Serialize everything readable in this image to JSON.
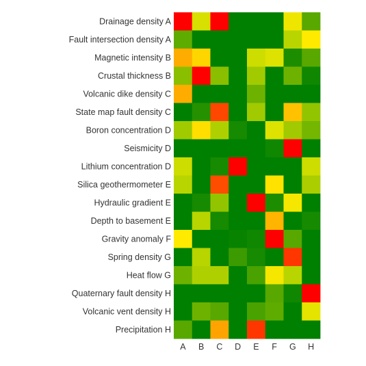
{
  "chart_data": {
    "type": "heatmap",
    "title": "",
    "xlabel": "",
    "ylabel": "",
    "columns": [
      "A",
      "B",
      "C",
      "D",
      "E",
      "F",
      "G",
      "H"
    ],
    "rows": [
      "Drainage density A",
      "Fault intersection density A",
      "Magnetic intensity B",
      "Crustal thickness B",
      "Volcanic dike density C",
      "State map fault density C",
      "Boron concentration D",
      "Seismicity D",
      "Lithium concentration D",
      "Silica geothermometer E",
      "Hydraulic gradient E",
      "Depth to basement E",
      "Gravity anomaly F",
      "Spring density G",
      "Heat flow G",
      "Quaternary fault density H",
      "Volcanic vent density H",
      "Precipitation H"
    ],
    "color_scale": [
      "#008000",
      "#7ab800",
      "#c8dc00",
      "#ffea00",
      "#ffa500",
      "#ff4500",
      "#ff0000"
    ],
    "value_range": [
      0,
      1
    ],
    "values": [
      [
        1.0,
        0.38,
        1.0,
        0.0,
        0.0,
        0.0,
        0.45,
        0.12
      ],
      [
        0.13,
        0.0,
        0.0,
        0.0,
        0.0,
        0.0,
        0.3,
        0.5
      ],
      [
        0.65,
        0.55,
        0.0,
        0.0,
        0.35,
        0.4,
        0.04,
        0.12
      ],
      [
        0.2,
        1.0,
        0.2,
        0.0,
        0.25,
        0.0,
        0.15,
        0.02
      ],
      [
        0.65,
        0.0,
        0.0,
        0.0,
        0.15,
        0.0,
        0.0,
        0.0
      ],
      [
        0.0,
        0.05,
        0.83,
        0.0,
        0.25,
        0.0,
        0.6,
        0.22
      ],
      [
        0.25,
        0.53,
        0.28,
        0.03,
        0.0,
        0.4,
        0.25,
        0.16
      ],
      [
        0.0,
        0.0,
        0.0,
        0.0,
        0.0,
        0.02,
        1.0,
        0.0
      ],
      [
        0.35,
        0.0,
        0.03,
        1.0,
        0.0,
        0.0,
        0.0,
        0.35
      ],
      [
        0.3,
        0.0,
        0.82,
        0.0,
        0.0,
        0.52,
        0.0,
        0.27
      ],
      [
        0.0,
        0.03,
        0.22,
        0.0,
        1.0,
        0.04,
        0.47,
        0.0
      ],
      [
        0.0,
        0.3,
        0.03,
        0.0,
        0.0,
        0.63,
        0.0,
        0.03
      ],
      [
        0.5,
        0.0,
        0.0,
        0.01,
        0.02,
        1.0,
        0.12,
        0.0
      ],
      [
        0.0,
        0.3,
        0.0,
        0.08,
        0.03,
        0.0,
        0.87,
        0.0
      ],
      [
        0.15,
        0.28,
        0.28,
        0.0,
        0.1,
        0.47,
        0.3,
        0.0
      ],
      [
        0.0,
        0.0,
        0.0,
        0.0,
        0.0,
        0.12,
        0.02,
        1.0
      ],
      [
        0.0,
        0.15,
        0.12,
        0.0,
        0.1,
        0.13,
        0.0,
        0.42
      ],
      [
        0.12,
        0.0,
        0.67,
        0.0,
        0.87,
        0.0,
        0.0,
        0.0
      ]
    ]
  }
}
